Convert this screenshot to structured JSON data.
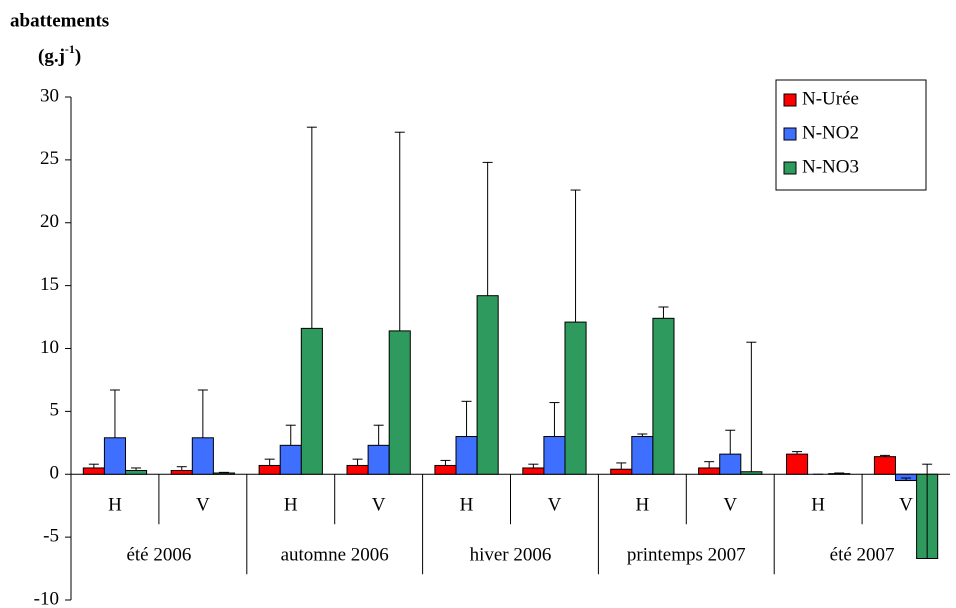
{
  "chart_data": {
    "type": "bar",
    "y_label": "abattements",
    "y_unit": "(g.j",
    "y_unit_sup": "-1",
    "y_unit_end": ")",
    "groups": [
      {
        "name": "été 2006",
        "categories": [
          "H",
          "V"
        ]
      },
      {
        "name": "automne 2006",
        "categories": [
          "H",
          "V"
        ]
      },
      {
        "name": "hiver 2006",
        "categories": [
          "H",
          "V"
        ]
      },
      {
        "name": "printemps 2007",
        "categories": [
          "H",
          "V"
        ]
      },
      {
        "name": "été 2007",
        "categories": [
          "H",
          "V"
        ]
      }
    ],
    "series": [
      {
        "name": "N-Urée",
        "color": "#ff0000",
        "values": [
          0.5,
          0.3,
          0.7,
          0.7,
          0.7,
          0.5,
          0.4,
          0.5,
          1.6,
          1.4
        ],
        "errors": [
          0.3,
          0.3,
          0.5,
          0.5,
          0.4,
          0.3,
          0.5,
          0.5,
          0.2,
          0.1
        ]
      },
      {
        "name": "N-NO2",
        "color": "#3f6fff",
        "values": [
          2.9,
          2.9,
          2.3,
          2.3,
          3.0,
          3.0,
          3.0,
          1.6,
          0,
          -0.5
        ],
        "errors": [
          3.8,
          3.8,
          1.6,
          1.6,
          2.8,
          2.7,
          0.2,
          1.9,
          0,
          0.2
        ]
      },
      {
        "name": "N-NO3",
        "color": "#2e9a5e",
        "values": [
          0.3,
          0.1,
          11.6,
          11.4,
          14.2,
          12.1,
          12.4,
          0.2,
          0.05,
          -6.7
        ],
        "errors": [
          0.2,
          0.05,
          16,
          15.8,
          10.6,
          10.5,
          0.9,
          10.3,
          0.05,
          7.5
        ]
      }
    ],
    "ylim": [
      -10,
      30
    ],
    "yticks": [
      -10,
      -5,
      0,
      5,
      10,
      15,
      20,
      25,
      30
    ],
    "legend": "top-right"
  }
}
